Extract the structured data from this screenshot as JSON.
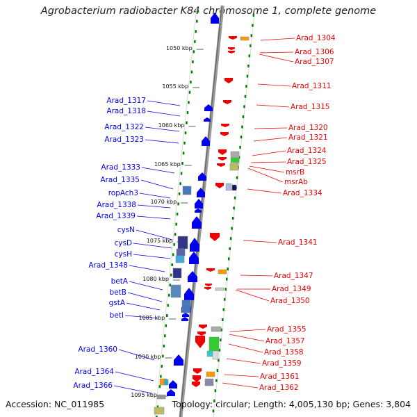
{
  "title": "Agrobacterium radiobacter K84 chromosome 1, complete genome",
  "footer": {
    "accession": "Accession: NC_011985",
    "topology": "Topology: circular; Length: 4,005,130 bp; Genes: 3,804"
  },
  "colors": {
    "forward_strand": "#0000ee",
    "reverse_strand": "#ee0000",
    "tick_dots": "#008000",
    "backbone": "#808080"
  },
  "kbp_markers": [
    "1050 kbp",
    "1055 kbp",
    "1060 kbp",
    "1065 kbp",
    "1070 kbp",
    "1075 kbp",
    "1080 kbp",
    "1085 kbp",
    "1090 kbp",
    "1095 kbp"
  ],
  "left_genes": [
    "Arad_1317",
    "Arad_1318",
    "Arad_1322",
    "Arad_1323",
    "Arad_1333",
    "Arad_1335",
    "ropAch3",
    "Arad_1338",
    "Arad_1339",
    "cysN",
    "cysD",
    "cysH",
    "Arad_1348",
    "betA",
    "betB",
    "gstA",
    "betI",
    "Arad_1360",
    "Arad_1364",
    "Arad_1366"
  ],
  "right_genes": [
    "Arad_1304",
    "Arad_1306",
    "Arad_1307",
    "Arad_1311",
    "Arad_1315",
    "Arad_1320",
    "Arad_1321",
    "Arad_1324",
    "Arad_1325",
    "msrB",
    "msrAb",
    "Arad_1334",
    "Arad_1341",
    "Arad_1347",
    "Arad_1349",
    "Arad_1350",
    "Arad_1355",
    "Arad_1357",
    "Arad_1358",
    "Arad_1359",
    "Arad_1361",
    "Arad_1362"
  ]
}
